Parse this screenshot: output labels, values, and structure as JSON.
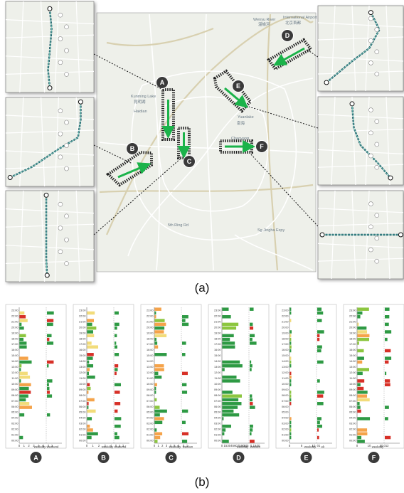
{
  "captions": {
    "top": "(a)",
    "bottom": "(b)"
  },
  "map": {
    "place_labels": [
      {
        "id": "airport",
        "text": "International Airport"
      },
      {
        "id": "airport_cn",
        "text": "北京首都"
      },
      {
        "id": "wenyu",
        "text": "Wenyu River"
      },
      {
        "id": "wenyu_cn",
        "text": "温榆河"
      },
      {
        "id": "kunming",
        "text": "Kunming Lake"
      },
      {
        "id": "kunming_cn",
        "text": "昆明湖"
      },
      {
        "id": "haidian",
        "text": "Haidian"
      },
      {
        "id": "yuanlake",
        "text": "Yuanlake"
      },
      {
        "id": "chaoyang",
        "text": "Chaoyang"
      },
      {
        "id": "nanhai",
        "text": "南海"
      },
      {
        "id": "shijingshan",
        "text": "5th Ring Rd"
      },
      {
        "id": "sgjw",
        "text": "Sg Jingha Expy"
      }
    ],
    "markers": [
      "A",
      "B",
      "C",
      "D",
      "E",
      "F"
    ]
  },
  "panels": [
    {
      "label": "A",
      "weekday_label": "weekday",
      "weekend_label": "weekend",
      "x_ticks": [
        "0",
        "1",
        "2",
        "3",
        "4",
        "5"
      ],
      "x2_ticks": [
        "0",
        "1"
      ]
    },
    {
      "label": "B",
      "weekday_label": "weekday",
      "weekend_label": "weekend",
      "x_ticks": [
        "0",
        "1",
        "2",
        "3",
        "4"
      ],
      "x2_ticks": [
        "0",
        "1",
        "2"
      ]
    },
    {
      "label": "C",
      "weekday_label": "weekday",
      "weekend_label": "weeken",
      "x_ticks": [
        "0",
        "1",
        "2",
        "3",
        "4",
        "5",
        "6"
      ],
      "x2_ticks": [
        "0",
        "1"
      ]
    },
    {
      "label": "D",
      "weekday_label": "weekday",
      "weekend_label": "weeken",
      "x_ticks": [
        "0",
        "15",
        "30",
        "45",
        "60",
        "75",
        "90",
        "105"
      ],
      "x2_ticks": [
        "0",
        "15",
        "30"
      ]
    },
    {
      "label": "E",
      "weekday_label": "weekday",
      "weekend_label": "ek",
      "x_ticks": [
        "0",
        "5",
        "10"
      ],
      "x2_ticks": [
        "01"
      ]
    },
    {
      "label": "F",
      "weekday_label": "weekday",
      "weekend_label": "",
      "x_ticks": [
        "0",
        "10",
        "20"
      ],
      "x2_ticks": [
        "012"
      ]
    }
  ],
  "time_ticks": [
    "00:00",
    "01:00",
    "02:00",
    "03:00",
    "04:00",
    "05:00",
    "06:00",
    "07:00",
    "08:00",
    "09:00",
    "10:00",
    "11:00",
    "12:00",
    "13:00",
    "14:00",
    "15:00",
    "16:00",
    "17:00",
    "18:00",
    "19:00",
    "20:00",
    "21:00",
    "22:00",
    "23:00"
  ],
  "colors": {
    "green": "#2e9a44",
    "lightgreen": "#8cc63f",
    "yellow": "#f2dc7a",
    "orange": "#f5a34a",
    "red": "#d73027",
    "route": "#1b8d3a",
    "map_bg": "#eef0ea"
  }
}
